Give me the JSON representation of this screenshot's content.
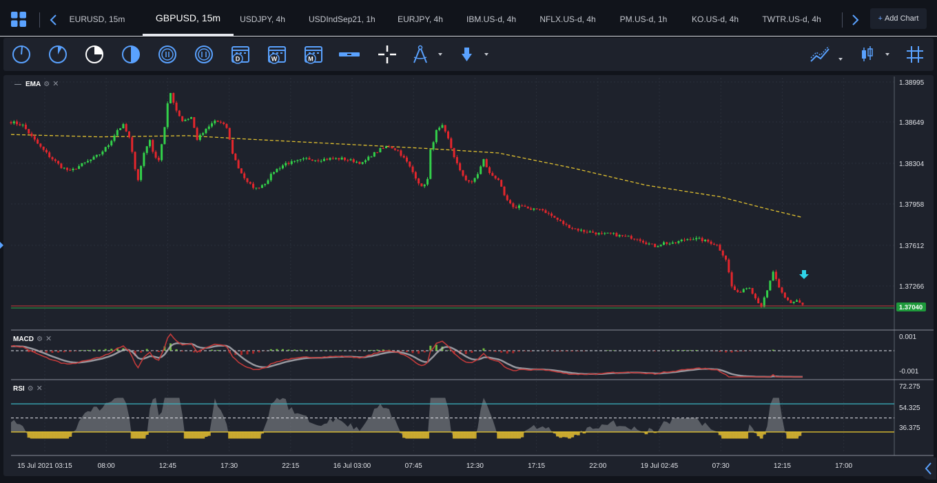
{
  "tabs": [
    {
      "label": "EURUSD, 15m",
      "active": false
    },
    {
      "label": "GBPUSD, 15m",
      "active": true
    },
    {
      "label": "USDJPY, 4h",
      "active": false
    },
    {
      "label": "USDIndSep21, 1h",
      "active": false
    },
    {
      "label": "EURJPY, 4h",
      "active": false
    },
    {
      "label": "IBM.US-d, 4h",
      "active": false
    },
    {
      "label": "NFLX.US-d, 4h",
      "active": false
    },
    {
      "label": "PM.US-d, 1h",
      "active": false
    },
    {
      "label": "KO.US-d, 4h",
      "active": false
    },
    {
      "label": "TWTR.US-d, 4h",
      "active": false
    }
  ],
  "add_chart_label": "Add Chart",
  "toolbar": {
    "calendar_labels": {
      "day": "D",
      "week": "W",
      "month": "M"
    },
    "period_icons": [
      "clock-1m-icon",
      "clock-5m-icon",
      "clock-15m-icon",
      "clock-30m-icon",
      "clock-1h-icon",
      "clock-4h-icon"
    ],
    "right_icons": [
      "chart-type-icon",
      "candles-icon",
      "grid-icon"
    ]
  },
  "panes": {
    "main_label": "EMA",
    "macd_label": "MACD",
    "rsi_label": "RSI"
  },
  "colors": {
    "bull": "#33d14a",
    "bear": "#e4262c",
    "ema": "#e2c230",
    "macd_fast": "#c23a3a",
    "macd_slow": "#b5b7bd",
    "rsi_upper": "#3bb6c4",
    "rsi_lower": "#e2c230",
    "marker": "#2fd4e8",
    "price_badge": "#1e9a3b"
  },
  "chart_data": {
    "type": "candlestick",
    "symbol": "GBPUSD",
    "interval": "15m",
    "price_ticks": [
      "1.38995",
      "1.38649",
      "1.38304",
      "1.37958",
      "1.37612",
      "1.37266"
    ],
    "price_range": [
      1.3695,
      1.3902
    ],
    "current_price": "1.37040",
    "time_ticks": [
      "15 Jul 2021 03:15",
      "08:00",
      "12:45",
      "17:30",
      "22:15",
      "16 Jul 03:00",
      "07:45",
      "12:30",
      "17:15",
      "22:00",
      "19 Jul 02:45",
      "07:30",
      "12:15",
      "17:00"
    ],
    "close_path": [
      [
        0,
        1.3865
      ],
      [
        4,
        1.3862
      ],
      [
        7,
        1.3852
      ],
      [
        10,
        1.3843
      ],
      [
        13,
        1.3835
      ],
      [
        17,
        1.3826
      ],
      [
        20,
        1.3822
      ],
      [
        24,
        1.3828
      ],
      [
        27,
        1.3832
      ],
      [
        30,
        1.3837
      ],
      [
        33,
        1.3845
      ],
      [
        36,
        1.3858
      ],
      [
        38,
        1.3862
      ],
      [
        40,
        1.3851
      ],
      [
        42,
        1.3825
      ],
      [
        43,
        1.3815
      ],
      [
        45,
        1.3838
      ],
      [
        47,
        1.385
      ],
      [
        48,
        1.3838
      ],
      [
        50,
        1.3832
      ],
      [
        52,
        1.386
      ],
      [
        53,
        1.388
      ],
      [
        54,
        1.389
      ],
      [
        56,
        1.3875
      ],
      [
        58,
        1.3866
      ],
      [
        61,
        1.3869
      ],
      [
        63,
        1.385
      ],
      [
        66,
        1.3858
      ],
      [
        69,
        1.3866
      ],
      [
        71,
        1.3864
      ],
      [
        73,
        1.386
      ],
      [
        75,
        1.3838
      ],
      [
        77,
        1.3825
      ],
      [
        80,
        1.3812
      ],
      [
        83,
        1.3807
      ],
      [
        86,
        1.3812
      ],
      [
        89,
        1.3822
      ],
      [
        93,
        1.3829
      ],
      [
        96,
        1.383
      ],
      [
        100,
        1.3833
      ],
      [
        104,
        1.3832
      ],
      [
        108,
        1.3833
      ],
      [
        112,
        1.3833
      ],
      [
        116,
        1.3831
      ],
      [
        119,
        1.3829
      ],
      [
        122,
        1.3836
      ],
      [
        125,
        1.3841
      ],
      [
        128,
        1.3844
      ],
      [
        131,
        1.384
      ],
      [
        134,
        1.383
      ],
      [
        137,
        1.3817
      ],
      [
        139,
        1.3808
      ],
      [
        141,
        1.3815
      ],
      [
        142,
        1.384
      ],
      [
        144,
        1.3857
      ],
      [
        146,
        1.3861
      ],
      [
        148,
        1.385
      ],
      [
        150,
        1.3835
      ],
      [
        152,
        1.3822
      ],
      [
        154,
        1.3815
      ],
      [
        156,
        1.3812
      ],
      [
        158,
        1.382
      ],
      [
        160,
        1.3832
      ],
      [
        162,
        1.382
      ],
      [
        165,
        1.3815
      ],
      [
        167,
        1.38
      ],
      [
        170,
        1.379
      ],
      [
        173,
        1.3793
      ],
      [
        176,
        1.3788
      ],
      [
        179,
        1.379
      ],
      [
        182,
        1.3785
      ],
      [
        185,
        1.378
      ],
      [
        188,
        1.3775
      ],
      [
        191,
        1.3772
      ],
      [
        194,
        1.377
      ],
      [
        197,
        1.3769
      ],
      [
        200,
        1.3767
      ],
      [
        203,
        1.3768
      ],
      [
        206,
        1.3766
      ],
      [
        209,
        1.3765
      ],
      [
        212,
        1.3764
      ],
      [
        215,
        1.376
      ],
      [
        218,
        1.3757
      ],
      [
        221,
        1.376
      ],
      [
        224,
        1.3759
      ],
      [
        227,
        1.3762
      ],
      [
        230,
        1.3764
      ],
      [
        233,
        1.3763
      ],
      [
        236,
        1.3761
      ],
      [
        239,
        1.3758
      ],
      [
        242,
        1.3746
      ],
      [
        244,
        1.3722
      ],
      [
        246,
        1.3716
      ],
      [
        248,
        1.372
      ],
      [
        250,
        1.3722
      ],
      [
        252,
        1.3712
      ],
      [
        254,
        1.3705
      ],
      [
        256,
        1.3718
      ],
      [
        258,
        1.3735
      ],
      [
        260,
        1.372
      ],
      [
        262,
        1.3712
      ],
      [
        264,
        1.3708
      ],
      [
        266,
        1.371
      ],
      [
        268,
        1.3706
      ]
    ],
    "ema_path": [
      [
        0,
        1.3854
      ],
      [
        30,
        1.3852
      ],
      [
        60,
        1.3853
      ],
      [
        80,
        1.385
      ],
      [
        110,
        1.3846
      ],
      [
        140,
        1.3842
      ],
      [
        165,
        1.3838
      ],
      [
        190,
        1.3825
      ],
      [
        215,
        1.381
      ],
      [
        240,
        1.38
      ],
      [
        255,
        1.379
      ],
      [
        268,
        1.3782
      ]
    ],
    "bar_count": 269
  }
}
